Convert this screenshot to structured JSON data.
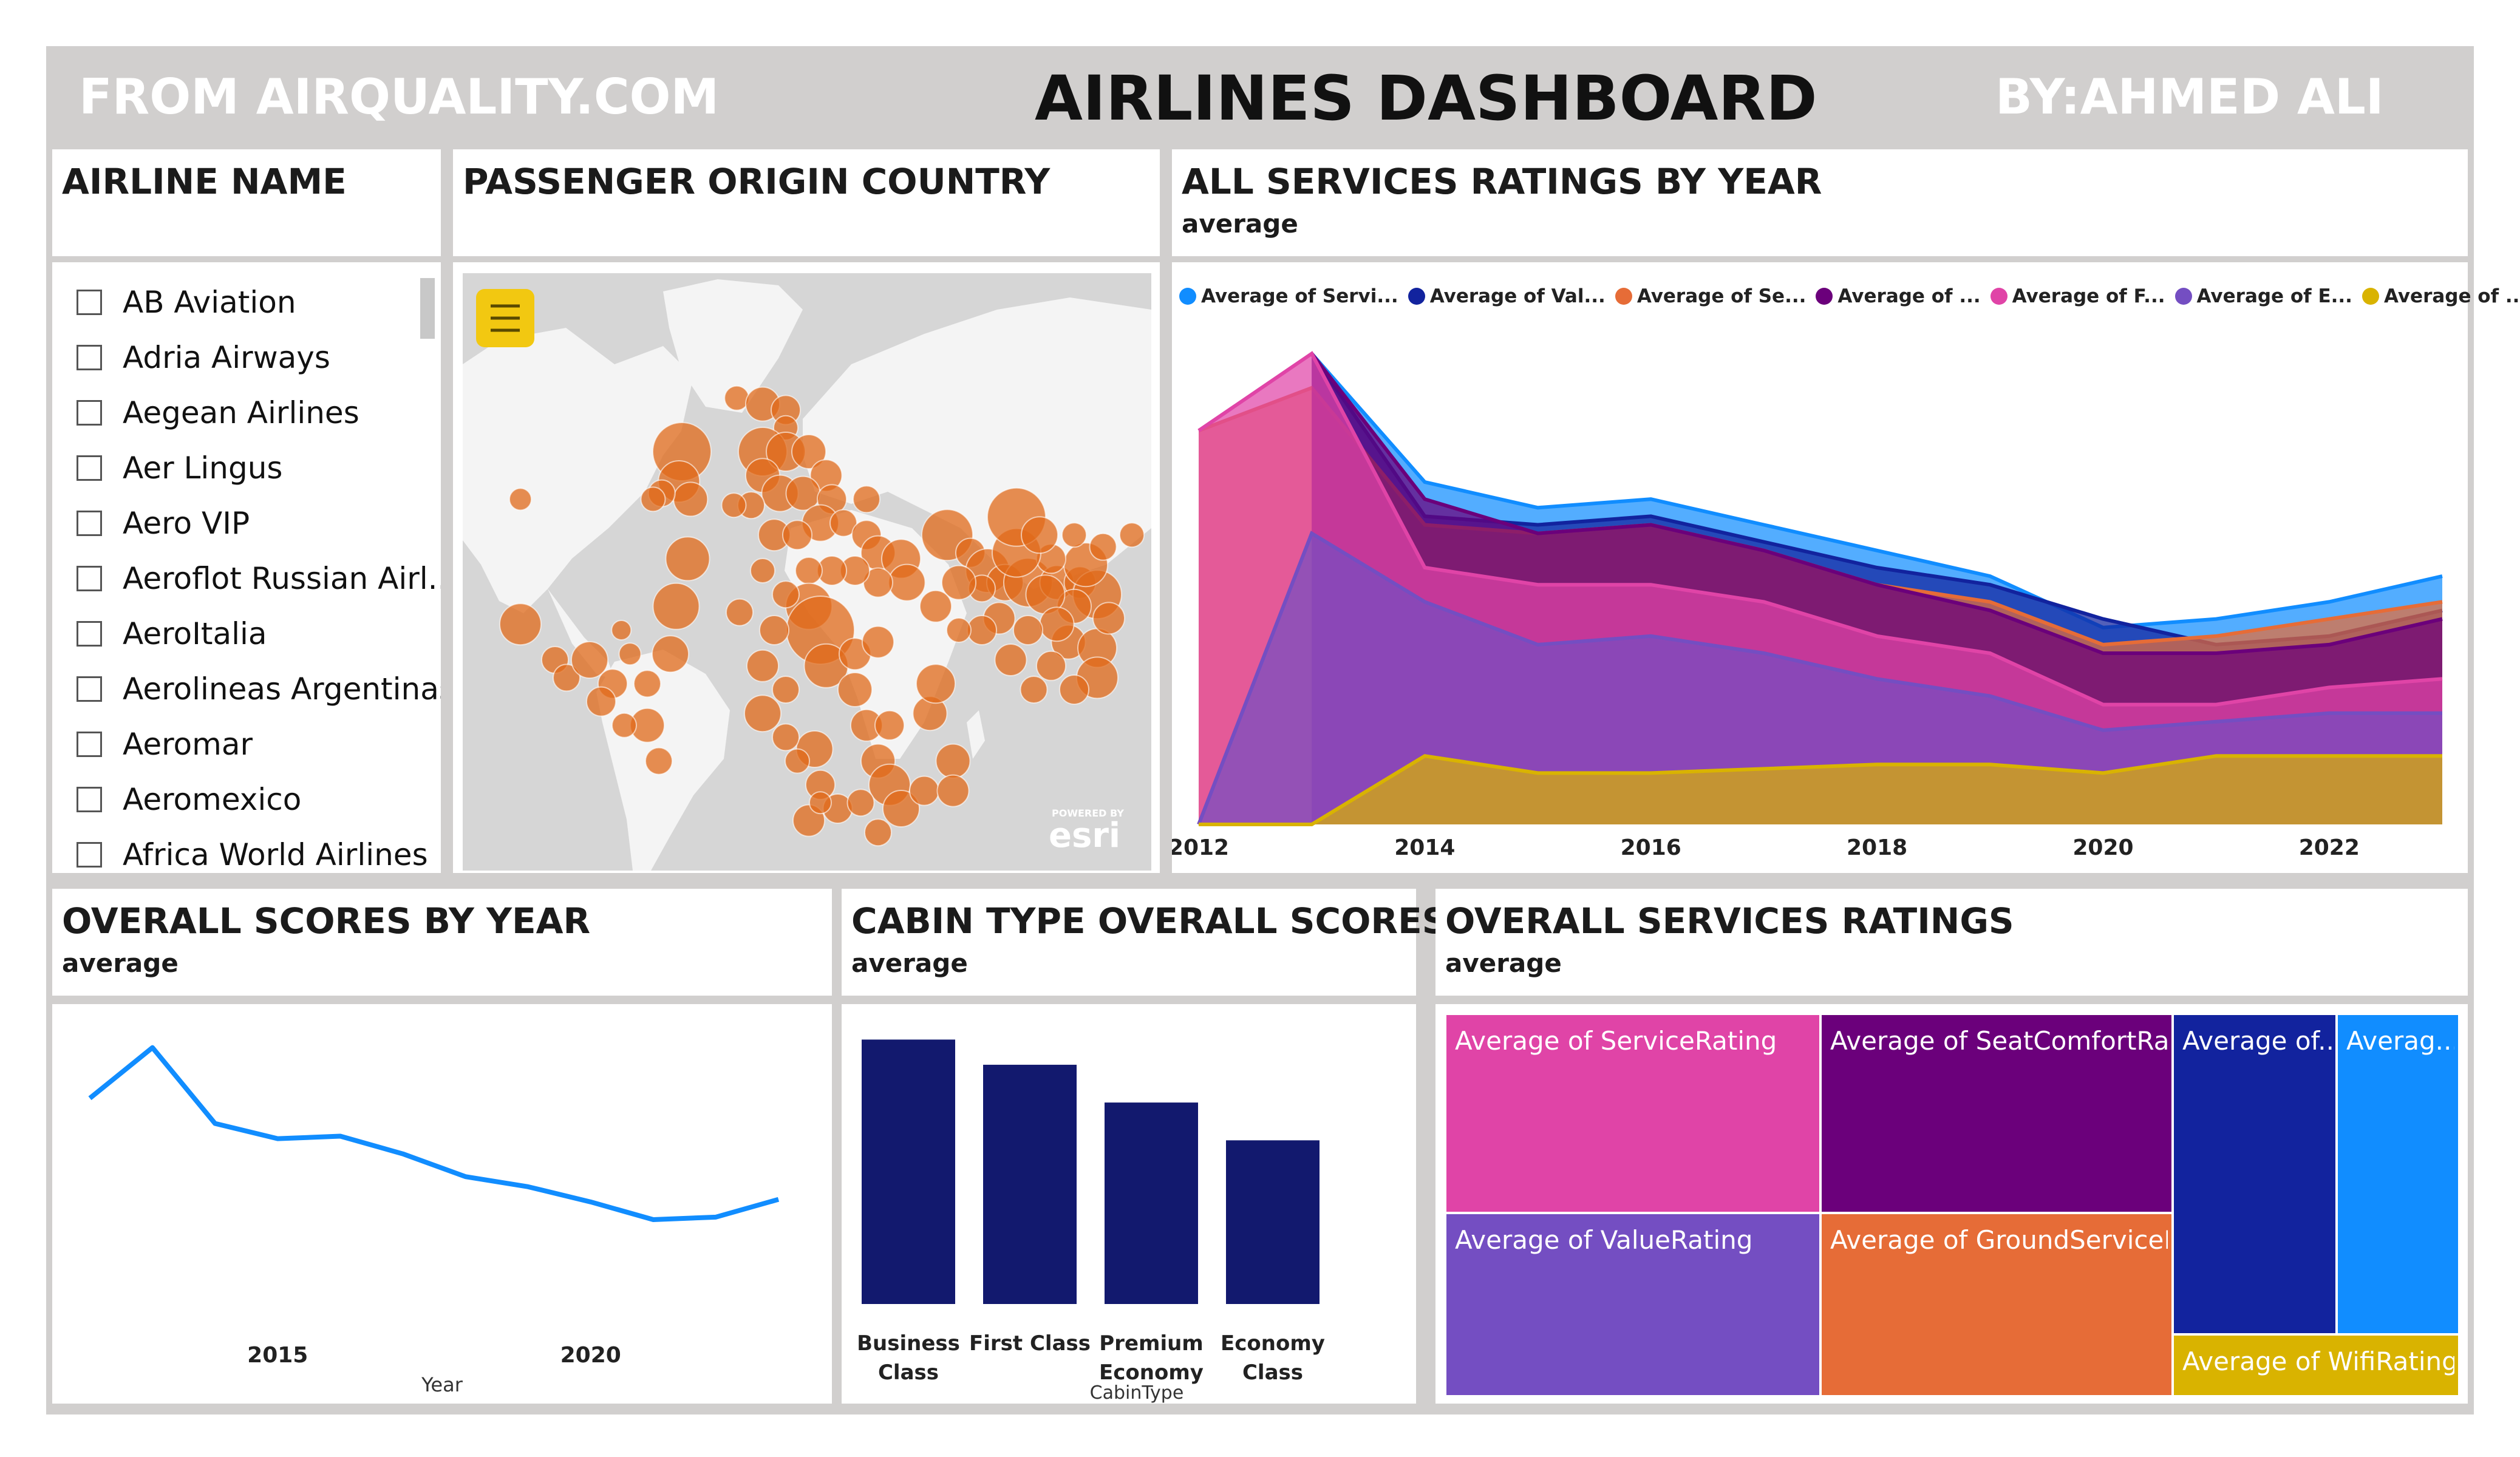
{
  "header": {
    "source": "FROM AIRQUALITY.COM",
    "title": "AIRLINES DASHBOARD",
    "author": "BY:AHMED ALI"
  },
  "airline_slicer": {
    "title": "AIRLINE NAME",
    "items": [
      "AB Aviation",
      "Adria Airways",
      "Aegean Airlines",
      "Aer Lingus",
      "Aero VIP",
      "Aeroflot Russian Airl...",
      "AeroItalia",
      "Aerolineas Argentinas",
      "Aeromar",
      "Aeromexico",
      "Africa World Airlines"
    ]
  },
  "map": {
    "title": "PASSENGER ORIGIN COUNTRY",
    "menu_icon": "hamburger-menu-icon",
    "attribution_top": "POWERED BY",
    "attribution": "esri",
    "colors": {
      "bubble": "#e06a1a",
      "land": "#f4f4f4",
      "water": "#d6d6d6",
      "menu_bg": "#f2c811"
    }
  },
  "services_area": {
    "title": "ALL SERVICES RATINGS BY YEAR",
    "subtitle": "average",
    "legend": [
      {
        "label": "Average of Servi...",
        "color": "#118dff"
      },
      {
        "label": "Average of Val...",
        "color": "#12239e"
      },
      {
        "label": "Average of Se...",
        "color": "#e66c37"
      },
      {
        "label": "Average of ...",
        "color": "#6b007b"
      },
      {
        "label": "Average of F...",
        "color": "#e044a7"
      },
      {
        "label": "Average of E...",
        "color": "#744ec2"
      },
      {
        "label": "Average of ...",
        "color": "#d9b300"
      }
    ],
    "x_ticks": [
      "2012",
      "2014",
      "2016",
      "2018",
      "2020",
      "2022"
    ]
  },
  "overall_scores": {
    "title": "OVERALL SCORES BY YEAR",
    "subtitle": "average",
    "x_ticks": [
      "2015",
      "2020"
    ],
    "xlabel": "Year",
    "line_color": "#118dff"
  },
  "cabin_scores": {
    "title": "CABIN TYPE OVERALL SCORES",
    "subtitle": "average",
    "categories": [
      [
        "Business",
        "Class"
      ],
      [
        "First Class"
      ],
      [
        "Premium",
        "Economy"
      ],
      [
        "Economy",
        "Class"
      ]
    ],
    "xlabel": "CabinType",
    "bar_color": "#12196e"
  },
  "treemap": {
    "title": "OVERALL SERVICES RATINGS",
    "subtitle": "average",
    "tiles": [
      {
        "label": "Average of ServiceRating",
        "color": "#e044a7"
      },
      {
        "label": "Average of SeatComfortRati...",
        "color": "#6b007b"
      },
      {
        "label": "Average of...",
        "color": "#12239e"
      },
      {
        "label": "Averag...",
        "color": "#118dff"
      },
      {
        "label": "Average of ValueRating",
        "color": "#744ec2"
      },
      {
        "label": "Average of GroundServiceR...",
        "color": "#e66c37"
      },
      {
        "label": "Average of WifiRating",
        "color": "#d9b300"
      }
    ]
  },
  "chart_data": [
    {
      "type": "area",
      "title": "ALL SERVICES RATINGS BY YEAR",
      "subtitle": "average",
      "x": [
        2012,
        2013,
        2014,
        2015,
        2016,
        2017,
        2018,
        2019,
        2020,
        2021,
        2022,
        2023
      ],
      "ylim": [
        0,
        6
      ],
      "series": [
        {
          "name": "Average of Servi...",
          "color": "#118dff",
          "values": [
            null,
            5.5,
            4.0,
            3.7,
            3.8,
            3.5,
            3.2,
            2.9,
            2.3,
            2.4,
            2.6,
            2.9
          ]
        },
        {
          "name": "Average of Val...",
          "color": "#12239e",
          "values": [
            null,
            5.5,
            3.6,
            3.5,
            3.6,
            3.3,
            3.0,
            2.8,
            2.4,
            2.1,
            2.2,
            2.5
          ]
        },
        {
          "name": "Average of Se...",
          "color": "#e66c37",
          "values": [
            4.6,
            5.1,
            3.5,
            3.4,
            3.5,
            3.2,
            2.8,
            2.6,
            2.1,
            2.2,
            2.4,
            2.6
          ]
        },
        {
          "name": "Average of ...",
          "color": "#6b007b",
          "values": [
            null,
            5.5,
            3.8,
            3.4,
            3.5,
            3.2,
            2.8,
            2.5,
            2.0,
            2.0,
            2.1,
            2.4
          ]
        },
        {
          "name": "Average of F...",
          "color": "#e044a7",
          "values": [
            4.6,
            5.5,
            3.0,
            2.8,
            2.8,
            2.6,
            2.2,
            2.0,
            1.4,
            1.4,
            1.6,
            1.7
          ]
        },
        {
          "name": "Average of E...",
          "color": "#744ec2",
          "values": [
            0,
            3.4,
            2.6,
            2.1,
            2.2,
            2.0,
            1.7,
            1.5,
            1.1,
            1.2,
            1.3,
            1.3
          ]
        },
        {
          "name": "Average of ...",
          "color": "#d9b300",
          "values": [
            0,
            0,
            0.8,
            0.6,
            0.6,
            0.65,
            0.7,
            0.7,
            0.6,
            0.8,
            0.8,
            0.8
          ]
        }
      ]
    },
    {
      "type": "line",
      "title": "OVERALL SCORES BY YEAR",
      "subtitle": "average",
      "xlabel": "Year",
      "x": [
        2012,
        2013,
        2014,
        2015,
        2016,
        2017,
        2018,
        2019,
        2020,
        2021,
        2022,
        2023
      ],
      "ylim": [
        0,
        6
      ],
      "series": [
        {
          "values": [
            4.5,
            5.5,
            4.0,
            3.7,
            3.75,
            3.4,
            2.95,
            2.75,
            2.45,
            2.1,
            2.15,
            2.5
          ]
        }
      ]
    },
    {
      "type": "bar",
      "title": "CABIN TYPE OVERALL SCORES",
      "subtitle": "average",
      "xlabel": "CabinType",
      "categories": [
        "Business Class",
        "First Class",
        "Premium Economy",
        "Economy Class"
      ],
      "values": [
        6.3,
        5.7,
        4.8,
        3.9
      ],
      "ylim": [
        0,
        7
      ]
    },
    {
      "type": "treemap",
      "title": "OVERALL SERVICES RATINGS",
      "subtitle": "average",
      "categories": [
        "Average of ServiceRating",
        "Average of SeatComfortRati...",
        "Average of...",
        "Averag...",
        "Average of ValueRating",
        "Average of GroundServiceR...",
        "Average of WifiRating"
      ],
      "values": [
        3.0,
        2.7,
        2.4,
        1.1,
        2.8,
        2.5,
        0.6
      ]
    }
  ]
}
